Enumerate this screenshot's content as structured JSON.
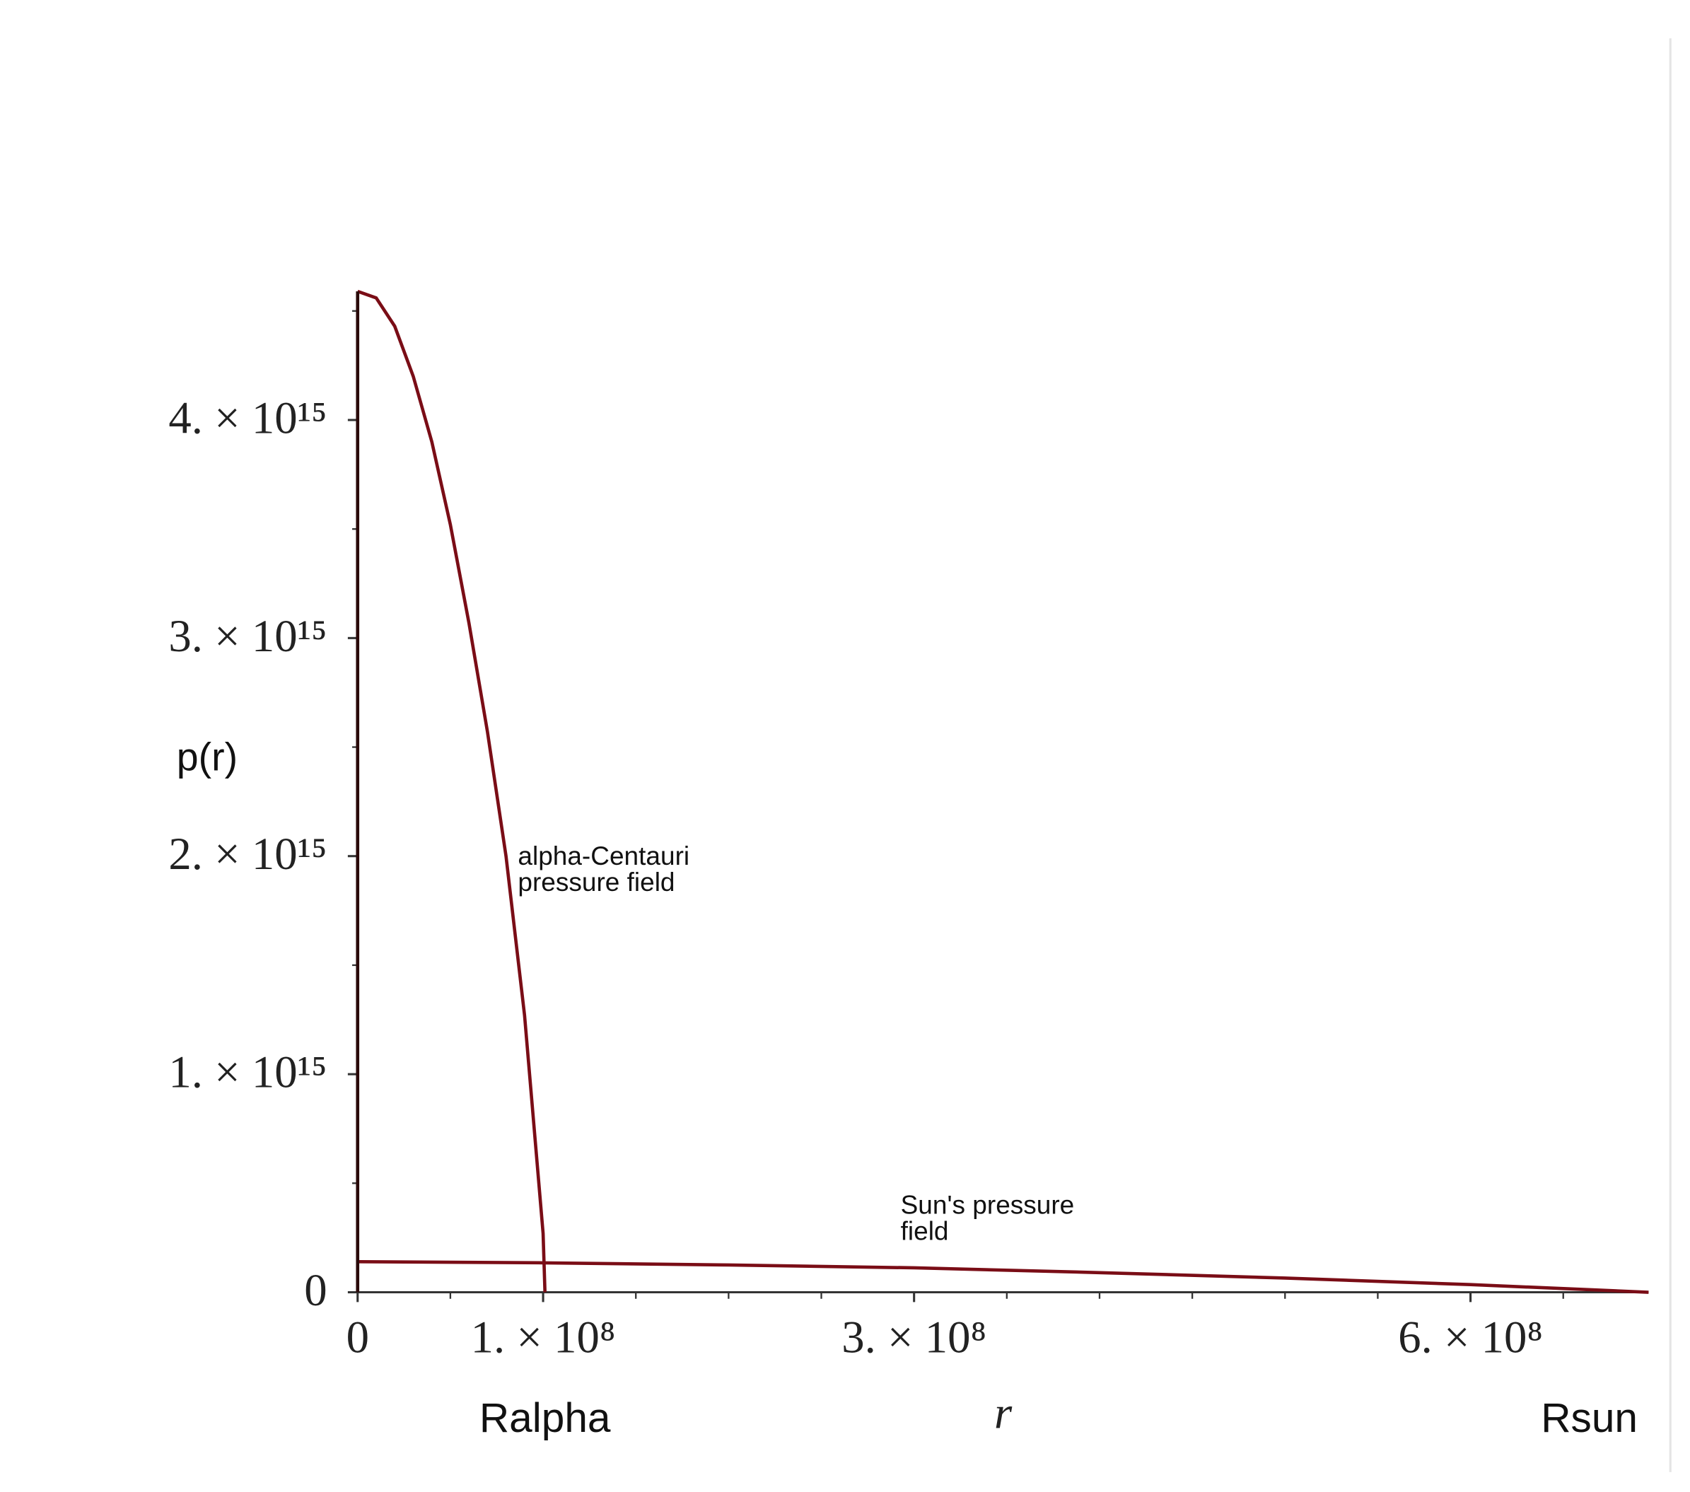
{
  "chart_data": {
    "type": "line",
    "x_label": "r",
    "y_label": "p(r)",
    "xlim": [
      0,
      696000000.0
    ],
    "ylim": [
      0,
      4590000000000000.0
    ],
    "xticks": [
      {
        "value": 0,
        "label": "0"
      },
      {
        "value": 100000000.0,
        "label": "1. × 10⁸"
      },
      {
        "value": 300000000.0,
        "label": "3. × 10⁸"
      },
      {
        "value": 600000000.0,
        "label": "6. × 10⁸"
      }
    ],
    "xminorticks": [
      50000000.0,
      150000000.0,
      200000000.0,
      250000000.0,
      350000000.0,
      400000000.0,
      450000000.0,
      500000000.0,
      550000000.0,
      650000000.0
    ],
    "yticks": [
      0,
      {
        "value": 1000000000000000.0,
        "label": "1. × 10¹⁵"
      },
      {
        "value": 2000000000000000.0,
        "label": "2. × 10¹⁵"
      },
      {
        "value": 3000000000000000.0,
        "label": "3. × 10¹⁵"
      },
      {
        "value": 4000000000000000.0,
        "label": "4. × 10¹⁵"
      }
    ],
    "yminorticks": [
      500000000000000.0,
      1500000000000000.0,
      2500000000000000.0,
      3500000000000000.0,
      4500000000000000.0
    ],
    "x_markers": [
      {
        "value": 101000000.0,
        "label": "Ralpha"
      },
      {
        "value": 696000000.0,
        "label": "Rsun"
      }
    ],
    "annotations": [
      [
        "alpha-Centauri",
        "pressure field"
      ],
      [
        "Sun's pressure",
        "field"
      ]
    ],
    "series": [
      {
        "color": "#7a0d16",
        "x": [
          0,
          10000000.0,
          20000000.0,
          30000000.0,
          40000000.0,
          50000000.0,
          60000000.0,
          70000000.0,
          80000000.0,
          90000000.0,
          100000000.0,
          101000000.0
        ],
        "values": [
          4590000000000000.0,
          4560000000000000.0,
          4430000000000000.0,
          4200000000000000.0,
          3900000000000000.0,
          3520000000000000.0,
          3070000000000000.0,
          2570000000000000.0,
          2000000000000000.0,
          1270000000000000.0,
          270000000000000.0,
          0
        ]
      },
      {
        "color": "#7a0d16",
        "x": [
          0,
          100000000.0,
          200000000.0,
          300000000.0,
          400000000.0,
          500000000.0,
          600000000.0,
          696000000.0
        ],
        "values": [
          140000000000000.0,
          135000000000000.0,
          125000000000000.0,
          112000000000000.0,
          90000000000000.0,
          65000000000000.0,
          35000000000000.0,
          0
        ]
      }
    ]
  }
}
